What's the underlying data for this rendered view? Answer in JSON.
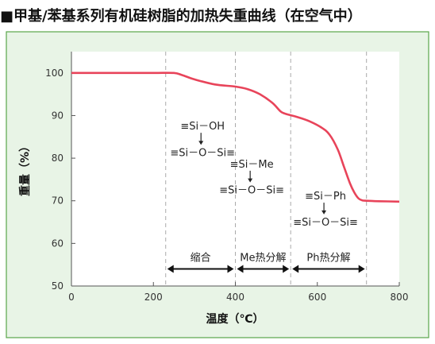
{
  "title": "■甲基/苯基系列有机硅树脂的加热失重曲线（在空气中）",
  "colors": {
    "panel_bg": "#e8f4e6",
    "panel_border": "#5aa64a",
    "plot_bg": "#ffffff",
    "curve": "#e8445a",
    "axis": "#555555",
    "guide": "#aaaaaa"
  },
  "chart_data": {
    "type": "line",
    "title": "■甲基/苯基系列有机硅树脂的加热失重曲线（在空气中）",
    "xlabel": "温度（℃）",
    "ylabel": "重量（%）",
    "xlim": [
      0,
      800
    ],
    "ylim": [
      50,
      105
    ],
    "xticks": [
      0,
      200,
      400,
      600,
      800
    ],
    "yticks": [
      50,
      60,
      70,
      80,
      90,
      100
    ],
    "grid": false,
    "series": [
      {
        "x": [
          0,
          100,
          200,
          250,
          270,
          300,
          350,
          400,
          430,
          460,
          490,
          510,
          520,
          530,
          550,
          580,
          610,
          630,
          650,
          665,
          680,
          690,
          700,
          710,
          720,
          750,
          800
        ],
        "y": [
          100,
          100,
          100,
          100,
          99.5,
          98.5,
          97.3,
          96.8,
          96.2,
          95.0,
          93.0,
          91.0,
          90.5,
          90.2,
          89.7,
          88.7,
          87.2,
          85.5,
          82.0,
          78.0,
          74.0,
          72.0,
          70.6,
          70.1,
          70.0,
          69.9,
          69.8
        ]
      }
    ],
    "guide_lines_x": [
      230,
      400,
      535,
      720
    ],
    "regions": [
      {
        "label": "缩合",
        "from": 230,
        "to": 400
      },
      {
        "label": "Me热分解",
        "from": 400,
        "to": 535
      },
      {
        "label": "Ph热分解",
        "from": 535,
        "to": 720
      }
    ],
    "region_arrow_y": 54,
    "annotations": [
      {
        "top": "≡Si－OH",
        "bottom": "≡Si－O－Si≡",
        "x_center": 320,
        "y_top": 86.7,
        "y_bottom": 80.5
      },
      {
        "top": "≡Si－Me",
        "bottom": "≡Si－O－Si≡",
        "x_center": 440,
        "y_top": 77.8,
        "y_bottom": 71.7
      },
      {
        "top": "≡Si－Ph",
        "bottom": "≡Si－O－Si≡",
        "x_center": 620,
        "y_top": 70.3,
        "y_bottom": 64.2
      }
    ]
  }
}
